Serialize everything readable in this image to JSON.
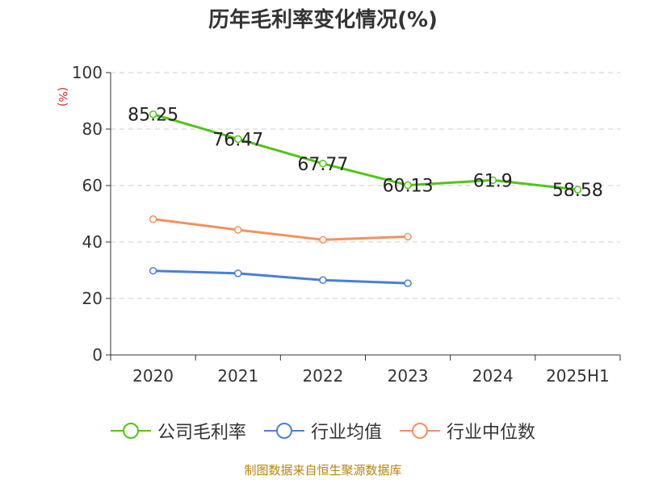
{
  "chart_data": {
    "type": "line",
    "title": "历年毛利率变化情况(%)",
    "ylabel": "(%)",
    "ylim": [
      0,
      100
    ],
    "yticks": [
      0,
      20,
      40,
      60,
      80,
      100
    ],
    "grid": true,
    "legend_position": "bottom",
    "categories": [
      "2020",
      "2021",
      "2022",
      "2023",
      "2024",
      "2025H1"
    ],
    "series": [
      {
        "name": "公司毛利率",
        "color": "#52c41a",
        "show_labels": true,
        "values": [
          85.25,
          76.47,
          67.77,
          60.13,
          61.9,
          58.58
        ]
      },
      {
        "name": "行业均值",
        "color": "#4a7fd6",
        "show_labels": false,
        "values": [
          29.8,
          28.9,
          26.5,
          25.4,
          null,
          null
        ]
      },
      {
        "name": "行业中位数",
        "color": "#f4915e",
        "show_labels": false,
        "values": [
          48.1,
          44.3,
          40.8,
          41.9,
          null,
          null
        ]
      }
    ]
  },
  "source": "制图数据来自恒生聚源数据库"
}
